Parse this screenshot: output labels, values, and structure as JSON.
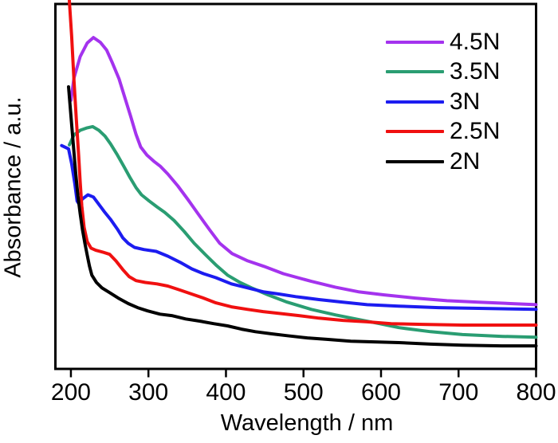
{
  "figure": {
    "background_color": "#ffffff",
    "frame_color": "#000000"
  },
  "chart_data": {
    "type": "line",
    "title": "",
    "xlabel": "Wavelength / nm",
    "ylabel": "Absorbance / a.u.",
    "xlim": [
      180,
      800
    ],
    "ylim": [
      0,
      1
    ],
    "y_units": "arbitrary units (no y ticks shown)",
    "x_ticks": [
      200,
      300,
      400,
      500,
      600,
      700,
      800
    ],
    "y_ticks": [],
    "grid": false,
    "legend_position": "upper-right-inside",
    "series": [
      {
        "name": "4.5N",
        "color": "#A433EE",
        "points": [
          [
            200,
            0.736
          ],
          [
            204,
            0.797
          ],
          [
            212,
            0.856
          ],
          [
            221,
            0.893
          ],
          [
            229,
            0.908
          ],
          [
            238,
            0.895
          ],
          [
            246,
            0.874
          ],
          [
            253,
            0.841
          ],
          [
            262,
            0.795
          ],
          [
            269,
            0.747
          ],
          [
            277,
            0.693
          ],
          [
            284,
            0.643
          ],
          [
            290,
            0.608
          ],
          [
            298,
            0.586
          ],
          [
            307,
            0.569
          ],
          [
            315,
            0.556
          ],
          [
            325,
            0.534
          ],
          [
            338,
            0.501
          ],
          [
            351,
            0.464
          ],
          [
            364,
            0.425
          ],
          [
            379,
            0.381
          ],
          [
            392,
            0.344
          ],
          [
            408,
            0.316
          ],
          [
            428,
            0.296
          ],
          [
            449,
            0.281
          ],
          [
            474,
            0.261
          ],
          [
            510,
            0.24
          ],
          [
            541,
            0.224
          ],
          [
            572,
            0.211
          ],
          [
            603,
            0.203
          ],
          [
            644,
            0.194
          ],
          [
            685,
            0.187
          ],
          [
            726,
            0.183
          ],
          [
            767,
            0.179
          ],
          [
            800,
            0.176
          ]
        ]
      },
      {
        "name": "3.5N",
        "color": "#2A9D72",
        "points": [
          [
            198,
            0.614
          ],
          [
            204,
            0.641
          ],
          [
            212,
            0.654
          ],
          [
            220,
            0.66
          ],
          [
            228,
            0.664
          ],
          [
            236,
            0.654
          ],
          [
            244,
            0.638
          ],
          [
            251,
            0.617
          ],
          [
            260,
            0.586
          ],
          [
            268,
            0.556
          ],
          [
            276,
            0.525
          ],
          [
            284,
            0.497
          ],
          [
            291,
            0.477
          ],
          [
            301,
            0.46
          ],
          [
            311,
            0.444
          ],
          [
            321,
            0.429
          ],
          [
            333,
            0.407
          ],
          [
            346,
            0.377
          ],
          [
            359,
            0.344
          ],
          [
            374,
            0.312
          ],
          [
            388,
            0.283
          ],
          [
            402,
            0.257
          ],
          [
            418,
            0.237
          ],
          [
            433,
            0.222
          ],
          [
            454,
            0.203
          ],
          [
            479,
            0.183
          ],
          [
            510,
            0.163
          ],
          [
            541,
            0.148
          ],
          [
            572,
            0.135
          ],
          [
            598,
            0.124
          ],
          [
            623,
            0.113
          ],
          [
            664,
            0.102
          ],
          [
            705,
            0.094
          ],
          [
            757,
            0.089
          ],
          [
            800,
            0.087
          ]
        ]
      },
      {
        "name": "3N",
        "color": "#1C1CF0",
        "points": [
          [
            188,
            0.612
          ],
          [
            197,
            0.603
          ],
          [
            201,
            0.562
          ],
          [
            205,
            0.508
          ],
          [
            208,
            0.46
          ],
          [
            210,
            0.453
          ],
          [
            215,
            0.466
          ],
          [
            222,
            0.477
          ],
          [
            229,
            0.471
          ],
          [
            236,
            0.451
          ],
          [
            243,
            0.431
          ],
          [
            251,
            0.41
          ],
          [
            260,
            0.383
          ],
          [
            267,
            0.359
          ],
          [
            274,
            0.344
          ],
          [
            282,
            0.333
          ],
          [
            294,
            0.327
          ],
          [
            310,
            0.322
          ],
          [
            325,
            0.309
          ],
          [
            341,
            0.292
          ],
          [
            356,
            0.274
          ],
          [
            371,
            0.261
          ],
          [
            387,
            0.25
          ],
          [
            407,
            0.233
          ],
          [
            428,
            0.222
          ],
          [
            449,
            0.211
          ],
          [
            469,
            0.205
          ],
          [
            490,
            0.198
          ],
          [
            520,
            0.19
          ],
          [
            551,
            0.183
          ],
          [
            582,
            0.176
          ],
          [
            623,
            0.172
          ],
          [
            674,
            0.168
          ],
          [
            726,
            0.166
          ],
          [
            800,
            0.163
          ]
        ]
      },
      {
        "name": "2.5N",
        "color": "#F01010",
        "points": [
          [
            198,
            1.009
          ],
          [
            201,
            0.911
          ],
          [
            204,
            0.791
          ],
          [
            207,
            0.682
          ],
          [
            210,
            0.584
          ],
          [
            212,
            0.512
          ],
          [
            214,
            0.447
          ],
          [
            217,
            0.388
          ],
          [
            221,
            0.349
          ],
          [
            226,
            0.331
          ],
          [
            232,
            0.325
          ],
          [
            241,
            0.32
          ],
          [
            250,
            0.314
          ],
          [
            258,
            0.296
          ],
          [
            267,
            0.272
          ],
          [
            275,
            0.253
          ],
          [
            284,
            0.242
          ],
          [
            296,
            0.237
          ],
          [
            311,
            0.233
          ],
          [
            325,
            0.227
          ],
          [
            341,
            0.216
          ],
          [
            356,
            0.205
          ],
          [
            371,
            0.194
          ],
          [
            387,
            0.181
          ],
          [
            407,
            0.17
          ],
          [
            428,
            0.163
          ],
          [
            448,
            0.157
          ],
          [
            469,
            0.152
          ],
          [
            494,
            0.146
          ],
          [
            520,
            0.139
          ],
          [
            551,
            0.133
          ],
          [
            582,
            0.129
          ],
          [
            613,
            0.124
          ],
          [
            654,
            0.122
          ],
          [
            705,
            0.12
          ],
          [
            800,
            0.12
          ]
        ]
      },
      {
        "name": "2N",
        "color": "#000000",
        "points": [
          [
            197,
            0.773
          ],
          [
            200,
            0.693
          ],
          [
            203,
            0.617
          ],
          [
            206,
            0.54
          ],
          [
            209,
            0.475
          ],
          [
            212,
            0.425
          ],
          [
            215,
            0.381
          ],
          [
            218,
            0.344
          ],
          [
            221,
            0.312
          ],
          [
            224,
            0.281
          ],
          [
            227,
            0.257
          ],
          [
            233,
            0.237
          ],
          [
            240,
            0.222
          ],
          [
            250,
            0.209
          ],
          [
            261,
            0.194
          ],
          [
            274,
            0.179
          ],
          [
            286,
            0.168
          ],
          [
            299,
            0.159
          ],
          [
            315,
            0.15
          ],
          [
            330,
            0.146
          ],
          [
            348,
            0.137
          ],
          [
            366,
            0.131
          ],
          [
            384,
            0.124
          ],
          [
            402,
            0.118
          ],
          [
            420,
            0.109
          ],
          [
            438,
            0.102
          ],
          [
            459,
            0.096
          ],
          [
            479,
            0.091
          ],
          [
            505,
            0.085
          ],
          [
            530,
            0.081
          ],
          [
            561,
            0.076
          ],
          [
            592,
            0.074
          ],
          [
            623,
            0.072
          ],
          [
            664,
            0.068
          ],
          [
            705,
            0.065
          ],
          [
            756,
            0.063
          ],
          [
            800,
            0.063
          ]
        ]
      }
    ]
  }
}
